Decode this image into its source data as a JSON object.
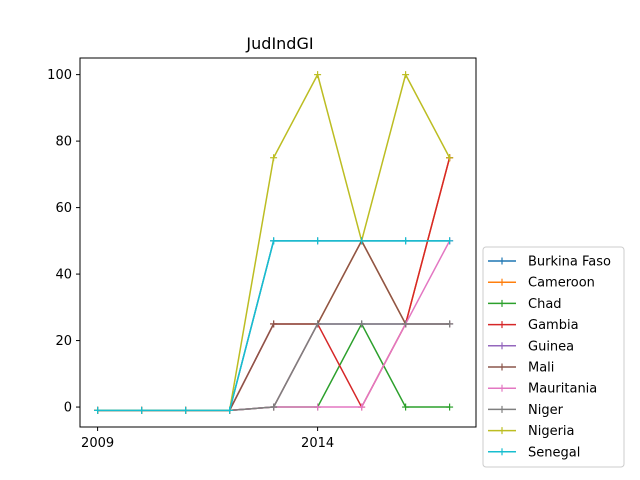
{
  "chart_data": {
    "type": "line",
    "title": "JudIndGI",
    "xlabel": "",
    "ylabel": "",
    "x": [
      2009,
      2010,
      2011,
      2012,
      2013,
      2014,
      2015,
      2016,
      2017
    ],
    "xticks": [
      2009,
      2014
    ],
    "xlim": [
      2008.6,
      2017.6
    ],
    "yticks": [
      0,
      20,
      40,
      60,
      80,
      100
    ],
    "ylim": [
      -6,
      105
    ],
    "grid": false,
    "legend_position": "right, outside plot",
    "series": [
      {
        "name": "Burkina Faso",
        "color": "#1f77b4",
        "values": [
          -1,
          -1,
          -1,
          -1,
          50,
          50,
          50,
          50,
          50
        ]
      },
      {
        "name": "Cameroon",
        "color": "#ff7f0e",
        "values": [
          -1,
          -1,
          -1,
          -1,
          0,
          25,
          50,
          25,
          75
        ]
      },
      {
        "name": "Chad",
        "color": "#2ca02c",
        "values": [
          -1,
          -1,
          -1,
          -1,
          0,
          0,
          25,
          0,
          0
        ]
      },
      {
        "name": "Gambia",
        "color": "#d62728",
        "values": [
          -1,
          -1,
          -1,
          -1,
          25,
          25,
          0,
          25,
          75
        ]
      },
      {
        "name": "Guinea",
        "color": "#9467bd",
        "values": [
          -1,
          -1,
          -1,
          -1,
          0,
          25,
          25,
          25,
          25
        ]
      },
      {
        "name": "Mali",
        "color": "#8c564b",
        "values": [
          -1,
          -1,
          -1,
          -1,
          25,
          25,
          50,
          25,
          25
        ]
      },
      {
        "name": "Mauritania",
        "color": "#e377c2",
        "values": [
          -1,
          -1,
          -1,
          -1,
          0,
          0,
          0,
          25,
          50
        ]
      },
      {
        "name": "Niger",
        "color": "#7f7f7f",
        "values": [
          -1,
          -1,
          -1,
          -1,
          0,
          25,
          25,
          25,
          25
        ]
      },
      {
        "name": "Nigeria",
        "color": "#bcbd22",
        "values": [
          -1,
          -1,
          -1,
          -1,
          75,
          100,
          50,
          100,
          75
        ]
      },
      {
        "name": "Senegal",
        "color": "#17becf",
        "values": [
          -1,
          -1,
          -1,
          -1,
          50,
          50,
          50,
          50,
          50
        ]
      }
    ]
  }
}
